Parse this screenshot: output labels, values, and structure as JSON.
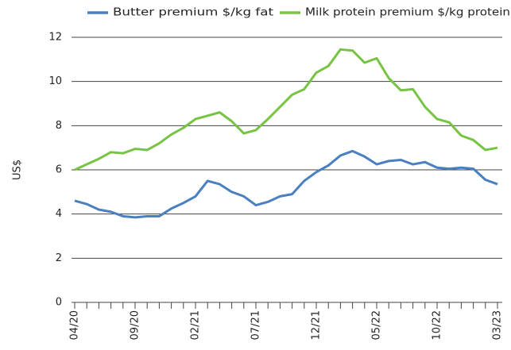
{
  "chart_data": {
    "type": "line",
    "y_label": "US$",
    "categories": [
      "04/20",
      null,
      null,
      null,
      null,
      "09/20",
      null,
      null,
      null,
      null,
      "02/21",
      null,
      null,
      null,
      null,
      "07/21",
      null,
      null,
      null,
      null,
      "12/21",
      null,
      null,
      null,
      null,
      "05/22",
      null,
      null,
      null,
      null,
      "10/22",
      null,
      null,
      null,
      null,
      "03/23"
    ],
    "series": [
      {
        "name": "Butter premium $/kg fat",
        "color": "#4a7fc1",
        "values": [
          4.6,
          4.45,
          4.2,
          4.1,
          3.9,
          3.85,
          3.9,
          3.9,
          4.25,
          4.5,
          4.8,
          5.5,
          5.35,
          5.0,
          4.8,
          4.4,
          4.55,
          4.8,
          4.9,
          5.5,
          5.9,
          6.2,
          6.65,
          6.85,
          6.6,
          6.25,
          6.4,
          6.45,
          6.25,
          6.35,
          6.1,
          6.05,
          6.1,
          6.05,
          5.55,
          5.35
        ]
      },
      {
        "name": "Milk protein premium $/kg protein",
        "color": "#76c442",
        "values": [
          6.0,
          6.25,
          6.5,
          6.8,
          6.75,
          6.95,
          6.9,
          7.2,
          7.6,
          7.9,
          8.3,
          8.45,
          8.6,
          8.2,
          7.65,
          7.8,
          8.3,
          8.85,
          9.4,
          9.65,
          10.4,
          10.7,
          11.45,
          11.4,
          10.85,
          11.05,
          10.15,
          9.6,
          9.65,
          8.85,
          8.3,
          8.15,
          7.55,
          7.35,
          6.9,
          7.0
        ]
      }
    ],
    "ylim": [
      0,
      12
    ],
    "yticks": [
      0,
      2,
      4,
      6,
      8,
      10,
      12
    ],
    "grid": true
  }
}
